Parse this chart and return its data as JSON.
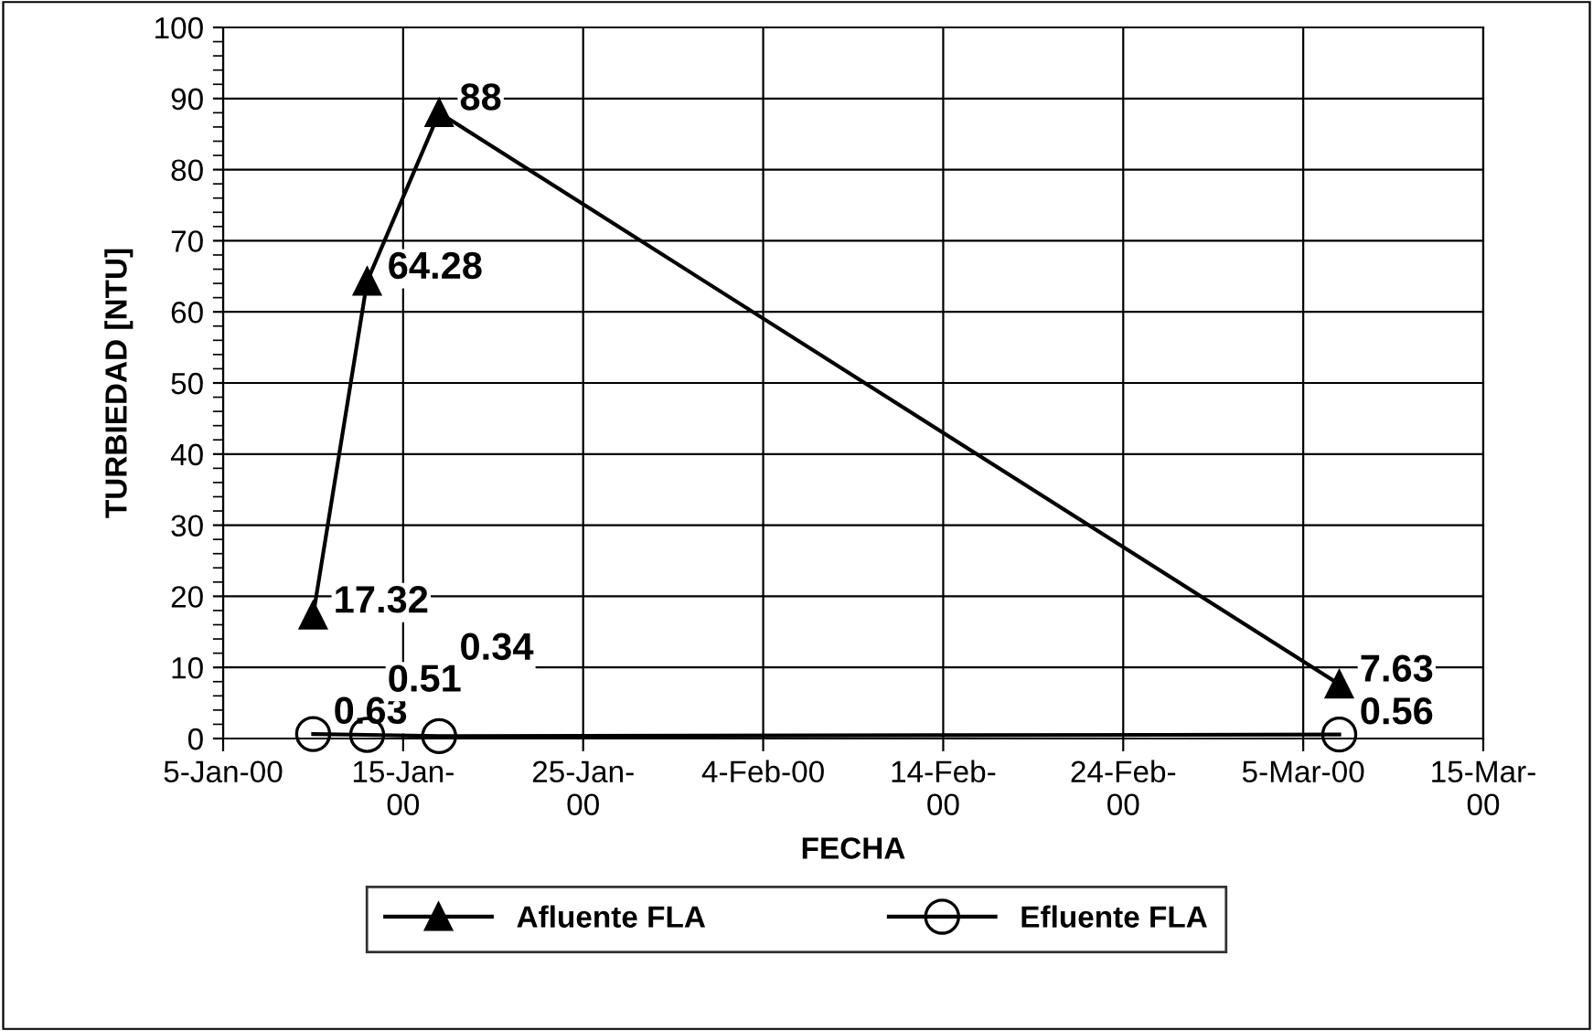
{
  "chart_data": {
    "type": "line",
    "xlabel": "FECHA",
    "ylabel": "TURBIEDAD [NTU]",
    "x": [
      "2000-01-10",
      "2000-01-13",
      "2000-01-17",
      "2000-03-07"
    ],
    "series": [
      {
        "name": "Afluente FLA",
        "color": "#000000",
        "marker": "triangle",
        "values": [
          17.32,
          64.28,
          88,
          7.63
        ]
      },
      {
        "name": "Efluente FLA",
        "color": "#000000",
        "marker": "circle",
        "values": [
          0.63,
          0.51,
          0.34,
          0.56
        ]
      }
    ],
    "data_labels": true,
    "xlim": [
      "2000-01-05",
      "2000-03-15"
    ],
    "xticks": [
      {
        "value": "2000-01-05",
        "label": "5-Jan-00"
      },
      {
        "value": "2000-01-15",
        "label": "15-Jan-\n00"
      },
      {
        "value": "2000-01-25",
        "label": "25-Jan-\n00"
      },
      {
        "value": "2000-02-04",
        "label": "4-Feb-00"
      },
      {
        "value": "2000-02-14",
        "label": "14-Feb-\n00"
      },
      {
        "value": "2000-02-24",
        "label": "24-Feb-\n00"
      },
      {
        "value": "2000-03-05",
        "label": "5-Mar-00"
      },
      {
        "value": "2000-03-15",
        "label": "15-Mar-\n00"
      }
    ],
    "ylim": [
      0,
      100
    ],
    "yticks": [
      0,
      10,
      20,
      30,
      40,
      50,
      60,
      70,
      80,
      90,
      100
    ],
    "grid": true,
    "legend": "bottom",
    "line_style": "solid"
  }
}
